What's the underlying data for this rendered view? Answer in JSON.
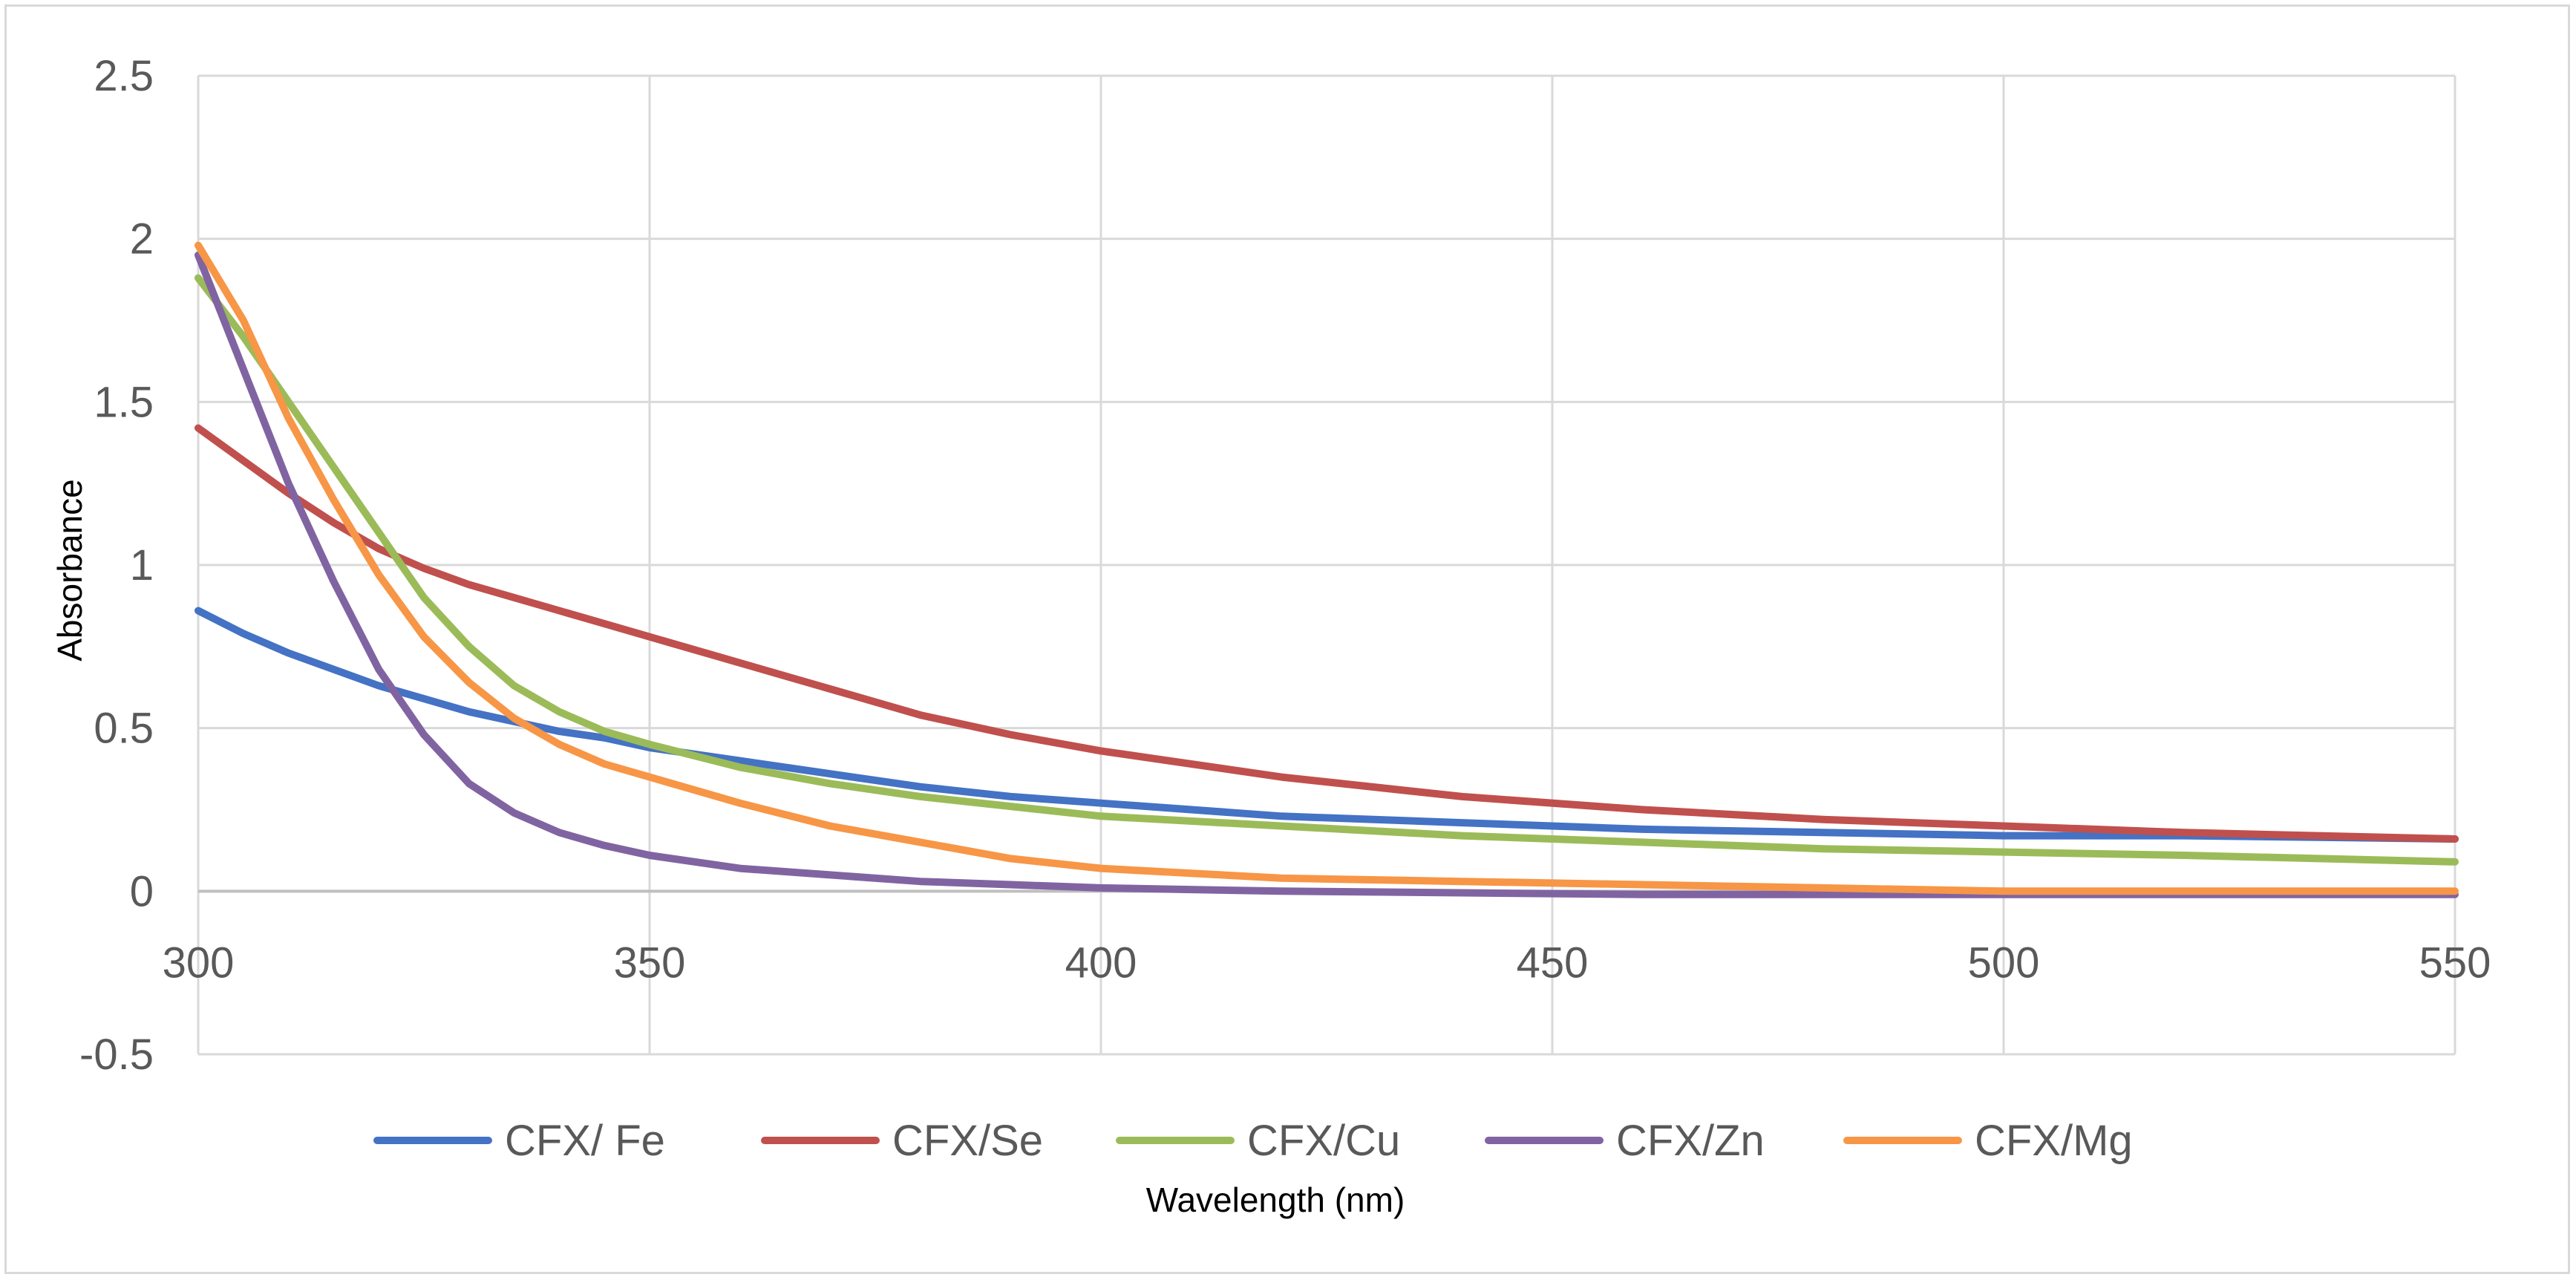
{
  "chart_data": {
    "type": "line",
    "title": "",
    "xlabel": "Wavelength (nm)",
    "ylabel": "Absorbance",
    "xlim": [
      300,
      550
    ],
    "ylim": [
      -0.5,
      2.5
    ],
    "x_ticks": [
      300,
      350,
      400,
      450,
      500,
      550
    ],
    "y_ticks": [
      -0.5,
      0,
      0.5,
      1,
      1.5,
      2,
      2.5
    ],
    "x_tick_labels": [
      "300",
      "350",
      "400",
      "450",
      "500",
      "550"
    ],
    "y_tick_labels": [
      "-0.5",
      "0",
      "0.5",
      "1",
      "1.5",
      "2",
      "2.5"
    ],
    "grid": true,
    "legend_position": "bottom",
    "x": [
      300,
      305,
      310,
      315,
      320,
      325,
      330,
      335,
      340,
      345,
      350,
      360,
      370,
      380,
      390,
      400,
      420,
      440,
      460,
      480,
      500,
      520,
      550
    ],
    "series": [
      {
        "name": "CFX/ Fe",
        "color": "#4472c4",
        "values": [
          0.86,
          0.79,
          0.73,
          0.68,
          0.63,
          0.59,
          0.55,
          0.52,
          0.49,
          0.47,
          0.44,
          0.4,
          0.36,
          0.32,
          0.29,
          0.27,
          0.23,
          0.21,
          0.19,
          0.18,
          0.17,
          0.17,
          0.16
        ]
      },
      {
        "name": "CFX/Se",
        "color": "#c0504d",
        "values": [
          1.42,
          1.32,
          1.22,
          1.13,
          1.05,
          0.99,
          0.94,
          0.9,
          0.86,
          0.82,
          0.78,
          0.7,
          0.62,
          0.54,
          0.48,
          0.43,
          0.35,
          0.29,
          0.25,
          0.22,
          0.2,
          0.18,
          0.16
        ]
      },
      {
        "name": "CFX/Cu",
        "color": "#9bbb59",
        "values": [
          1.88,
          1.7,
          1.5,
          1.3,
          1.1,
          0.9,
          0.75,
          0.63,
          0.55,
          0.49,
          0.45,
          0.38,
          0.33,
          0.29,
          0.26,
          0.23,
          0.2,
          0.17,
          0.15,
          0.13,
          0.12,
          0.11,
          0.09
        ]
      },
      {
        "name": "CFX/Zn",
        "color": "#8064a2",
        "values": [
          1.95,
          1.6,
          1.25,
          0.95,
          0.68,
          0.48,
          0.33,
          0.24,
          0.18,
          0.14,
          0.11,
          0.07,
          0.05,
          0.03,
          0.02,
          0.01,
          0.0,
          -0.005,
          -0.01,
          -0.01,
          -0.01,
          -0.01,
          -0.01
        ]
      },
      {
        "name": "CFX/Mg",
        "color": "#f79646",
        "values": [
          1.98,
          1.75,
          1.45,
          1.2,
          0.97,
          0.78,
          0.64,
          0.53,
          0.45,
          0.39,
          0.35,
          0.27,
          0.2,
          0.15,
          0.1,
          0.07,
          0.04,
          0.03,
          0.02,
          0.01,
          0.0,
          0.0,
          0.0
        ]
      }
    ]
  }
}
